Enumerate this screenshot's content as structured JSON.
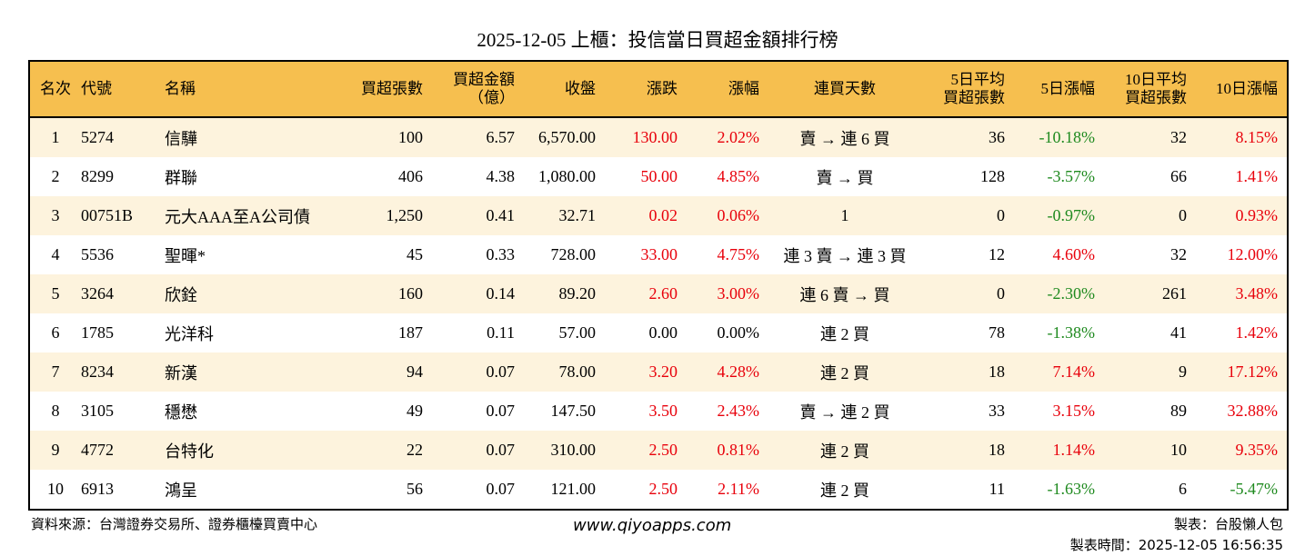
{
  "title": "2025-12-05 上櫃：投信當日買超金額排行榜",
  "colors": {
    "header_bg": "#f6bf4f",
    "row_alt": "#fdf3dd",
    "up": "#e8000b",
    "down": "#1f8a1f"
  },
  "columns": [
    "名次",
    "代號",
    "名稱",
    "買超張數",
    "買超金額\n（億）",
    "收盤",
    "漲跌",
    "漲幅",
    "連買天數",
    "5日平均\n買超張數",
    "5日漲幅",
    "10日平均\n買超張數",
    "10日漲幅"
  ],
  "rows": [
    [
      "1",
      "5274",
      "信驊",
      "100",
      "6.57",
      "6,570.00",
      "130.00",
      "2.02%",
      "賣 → 連 6 買",
      "36",
      "-10.18%",
      "32",
      "8.15%"
    ],
    [
      "2",
      "8299",
      "群聯",
      "406",
      "4.38",
      "1,080.00",
      "50.00",
      "4.85%",
      "賣 → 買",
      "128",
      "-3.57%",
      "66",
      "1.41%"
    ],
    [
      "3",
      "00751B",
      "元大AAA至A公司債",
      "1,250",
      "0.41",
      "32.71",
      "0.02",
      "0.06%",
      "1",
      "0",
      "-0.97%",
      "0",
      "0.93%"
    ],
    [
      "4",
      "5536",
      "聖暉*",
      "45",
      "0.33",
      "728.00",
      "33.00",
      "4.75%",
      "連 3 賣 → 連 3 買",
      "12",
      "4.60%",
      "32",
      "12.00%"
    ],
    [
      "5",
      "3264",
      "欣銓",
      "160",
      "0.14",
      "89.20",
      "2.60",
      "3.00%",
      "連 6 賣 → 買",
      "0",
      "-2.30%",
      "261",
      "3.48%"
    ],
    [
      "6",
      "1785",
      "光洋科",
      "187",
      "0.11",
      "57.00",
      "0.00",
      "0.00%",
      "連 2 買",
      "78",
      "-1.38%",
      "41",
      "1.42%"
    ],
    [
      "7",
      "8234",
      "新漢",
      "94",
      "0.07",
      "78.00",
      "3.20",
      "4.28%",
      "連 2 買",
      "18",
      "7.14%",
      "9",
      "17.12%"
    ],
    [
      "8",
      "3105",
      "穩懋",
      "49",
      "0.07",
      "147.50",
      "3.50",
      "2.43%",
      "賣 → 連 2 買",
      "33",
      "3.15%",
      "89",
      "32.88%"
    ],
    [
      "9",
      "4772",
      "台特化",
      "22",
      "0.07",
      "310.00",
      "2.50",
      "0.81%",
      "連 2 買",
      "18",
      "1.14%",
      "10",
      "9.35%"
    ],
    [
      "10",
      "6913",
      "鴻呈",
      "56",
      "0.07",
      "121.00",
      "2.50",
      "2.11%",
      "連 2 買",
      "11",
      "-1.63%",
      "6",
      "-5.47%"
    ]
  ],
  "footer": {
    "source": "資料來源：台灣證券交易所、證券櫃檯買賣中心",
    "site": "www.qiyoapps.com",
    "maker": "製表：台股懶人包",
    "time": "製表時間：2025-12-05 16:56:35"
  }
}
